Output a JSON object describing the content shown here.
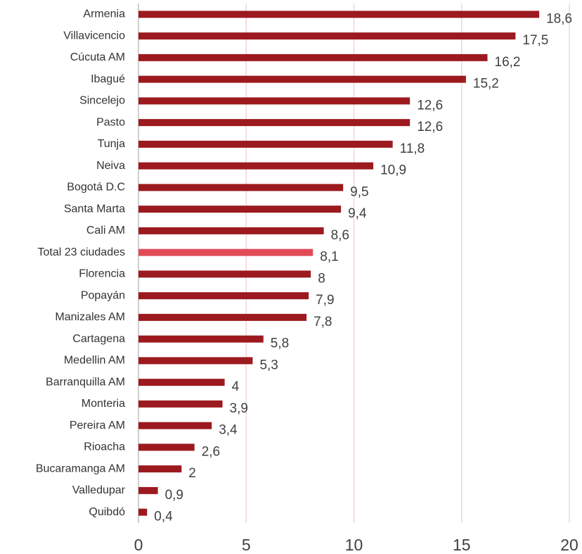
{
  "chart_data": {
    "type": "bar",
    "orientation": "horizontal",
    "categories": [
      "Armenia",
      "Villavicencio",
      "Cúcuta AM",
      "Ibagué",
      "Sincelejo",
      "Pasto",
      "Tunja",
      "Neiva",
      "Bogotá D.C",
      "Santa Marta",
      "Cali AM",
      "Total 23 ciudades",
      "Florencia",
      "Popayán",
      "Manizales AM",
      "Cartagena",
      "Medellin AM",
      "Barranquilla AM",
      "Monteria",
      "Pereira AM",
      "Rioacha",
      "Bucaramanga AM",
      "Valledupar",
      "Quibdó"
    ],
    "values": [
      18.6,
      17.5,
      16.2,
      15.2,
      12.6,
      12.6,
      11.8,
      10.9,
      9.5,
      9.4,
      8.6,
      8.1,
      8,
      7.9,
      7.8,
      5.8,
      5.3,
      4,
      3.9,
      3.4,
      2.6,
      2,
      0.9,
      0.4
    ],
    "value_labels": [
      "18,6",
      "17,5",
      "16,2",
      "15,2",
      "12,6",
      "12,6",
      "11,8",
      "10,9",
      "9,5",
      "9,4",
      "8,6",
      "8,1",
      "8",
      "7,9",
      "7,8",
      "5,8",
      "5,3",
      "4",
      "3,9",
      "3,4",
      "2,6",
      "2",
      "0,9",
      "0,4"
    ],
    "colors": [
      "#9c1a1f",
      "#9c1a1f",
      "#9c1a1f",
      "#9c1a1f",
      "#9c1a1f",
      "#9c1a1f",
      "#9c1a1f",
      "#9c1a1f",
      "#9c1a1f",
      "#9c1a1f",
      "#9c1a1f",
      "#e04b57",
      "#9c1a1f",
      "#9c1a1f",
      "#9c1a1f",
      "#9c1a1f",
      "#9c1a1f",
      "#9c1a1f",
      "#9c1a1f",
      "#9c1a1f",
      "#9c1a1f",
      "#9c1a1f",
      "#9c1a1f",
      "#9c1a1f"
    ],
    "xlim": [
      0,
      20
    ],
    "xticks": [
      0,
      5,
      10,
      15,
      20
    ],
    "grid": true
  }
}
